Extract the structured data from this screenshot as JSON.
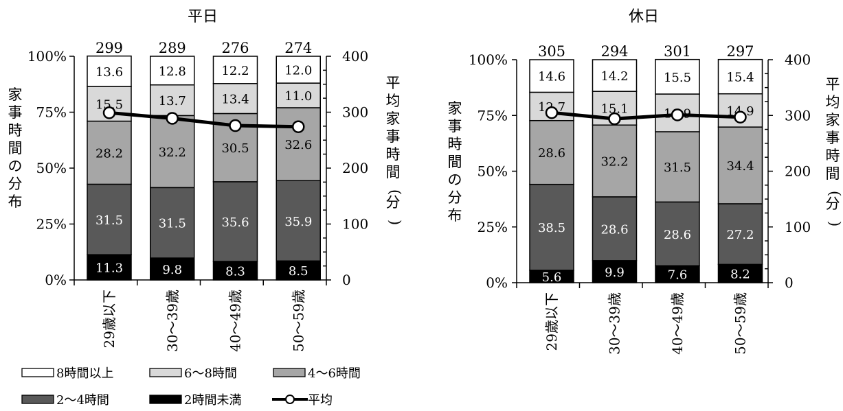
{
  "legend": {
    "items": [
      {
        "label": "8時間以上",
        "color": "#ffffff",
        "kind": "box"
      },
      {
        "label": "6〜8時間",
        "color": "#d9d9d9",
        "kind": "box"
      },
      {
        "label": "4〜6時間",
        "color": "#a6a6a6",
        "kind": "box"
      },
      {
        "label": "2〜4時間",
        "color": "#595959",
        "kind": "box"
      },
      {
        "label": "2時間未満",
        "color": "#000000",
        "kind": "box"
      },
      {
        "label": "平均",
        "color": "#000000",
        "kind": "line"
      }
    ]
  },
  "chart_data": [
    {
      "type": "bar",
      "stacked": true,
      "title": "平日",
      "ylabel": "家事時間の分布",
      "y2label": "平均家事時間(分)",
      "categories": [
        "29歳以下",
        "30〜39歳",
        "40〜49歳",
        "50〜59歳"
      ],
      "ylim": [
        0,
        100
      ],
      "y_ticks": [
        "0%",
        "25%",
        "50%",
        "75%",
        "100%"
      ],
      "y2lim": [
        0,
        400
      ],
      "y2_ticks": [
        "0",
        "100",
        "200",
        "300",
        "400"
      ],
      "series": [
        {
          "name": "2時間未満",
          "values": [
            "11.3",
            "9.8",
            "8.3",
            "8.5"
          ],
          "color": "#000000",
          "label_color": "#ffffff"
        },
        {
          "name": "2〜4時間",
          "values": [
            "31.5",
            "31.5",
            "35.6",
            "35.9"
          ],
          "color": "#595959",
          "label_color": "#ffffff"
        },
        {
          "name": "4〜6時間",
          "values": [
            "28.2",
            "32.2",
            "30.5",
            "32.6"
          ],
          "color": "#a6a6a6",
          "label_color": "#000000"
        },
        {
          "name": "6〜8時間",
          "values": [
            "15.5",
            "13.7",
            "13.4",
            "11.0"
          ],
          "color": "#d9d9d9",
          "label_color": "#000000"
        },
        {
          "name": "8時間以上",
          "values": [
            "13.6",
            "12.8",
            "12.2",
            "12.0"
          ],
          "color": "#ffffff",
          "label_color": "#000000"
        }
      ],
      "average": {
        "name": "平均",
        "values": [
          "299",
          "289",
          "276",
          "274"
        ],
        "axis": "secondary"
      }
    },
    {
      "type": "bar",
      "stacked": true,
      "title": "休日",
      "ylabel": "家事時間の分布",
      "y2label": "平均家事時間(分)",
      "categories": [
        "29歳以下",
        "30〜39歳",
        "40〜49歳",
        "50〜59歳"
      ],
      "ylim": [
        0,
        100
      ],
      "y_ticks": [
        "0%",
        "25%",
        "50%",
        "75%",
        "100%"
      ],
      "y2lim": [
        0,
        400
      ],
      "y2_ticks": [
        "0",
        "100",
        "200",
        "300",
        "400"
      ],
      "series": [
        {
          "name": "2時間未満",
          "values": [
            "5.6",
            "9.9",
            "7.6",
            "8.2"
          ],
          "color": "#000000",
          "label_color": "#ffffff"
        },
        {
          "name": "2〜4時間",
          "values": [
            "38.5",
            "28.6",
            "28.6",
            "27.2"
          ],
          "color": "#595959",
          "label_color": "#ffffff"
        },
        {
          "name": "4〜6時間",
          "values": [
            "28.6",
            "32.2",
            "31.5",
            "34.4"
          ],
          "color": "#a6a6a6",
          "label_color": "#000000"
        },
        {
          "name": "6〜8時間",
          "values": [
            "12.7",
            "15.1",
            "16.9",
            "14.9"
          ],
          "color": "#d9d9d9",
          "label_color": "#000000"
        },
        {
          "name": "8時間以上",
          "values": [
            "14.6",
            "14.2",
            "15.5",
            "15.4"
          ],
          "color": "#ffffff",
          "label_color": "#000000"
        }
      ],
      "average": {
        "name": "平均",
        "values": [
          "305",
          "294",
          "301",
          "297"
        ],
        "axis": "secondary"
      }
    }
  ]
}
